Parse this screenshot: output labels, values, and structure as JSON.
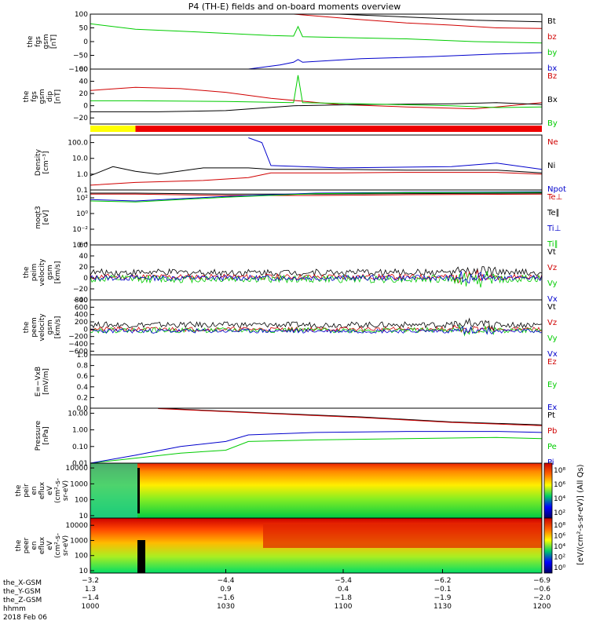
{
  "title": "P4 (TH-E) fields and on-board moments overview",
  "colors": {
    "black": "#000000",
    "red": "#d00000",
    "green": "#00cc00",
    "blue": "#0000cc",
    "yellow": "#ffff00",
    "bar_red": "#ee0000"
  },
  "chart_data": [
    {
      "type": "line",
      "title_lines": [
        "the",
        "fgs",
        "gsm",
        "[nT]"
      ],
      "ylim": [
        -100,
        100
      ],
      "yticks": [
        "100",
        "50",
        "0",
        "−50",
        "−100"
      ],
      "ytick_values": [
        100,
        50,
        0,
        -50,
        -100
      ],
      "series": [
        {
          "name": "Bt",
          "color": "#000000",
          "x": [
            0,
            0.35,
            0.55,
            0.75,
            0.85,
            1.0
          ],
          "y": [
            null,
            null,
            100,
            86,
            78,
            72
          ]
        },
        {
          "name": "bz",
          "color": "#d00000",
          "x": [
            0.45,
            0.6,
            0.7,
            0.8,
            0.9,
            1.0
          ],
          "y": [
            100,
            80,
            68,
            60,
            50,
            48
          ]
        },
        {
          "name": "by",
          "color": "#00cc00",
          "x": [
            0,
            0.1,
            0.2,
            0.3,
            0.4,
            0.45,
            0.46,
            0.47,
            0.55,
            0.7,
            0.85,
            1.0
          ],
          "y": [
            65,
            45,
            38,
            30,
            22,
            20,
            55,
            18,
            15,
            10,
            0,
            -5
          ]
        },
        {
          "name": "bx",
          "color": "#0000cc",
          "x": [
            0.35,
            0.42,
            0.45,
            0.46,
            0.47,
            0.6,
            0.75,
            0.9,
            1.0
          ],
          "y": [
            -100,
            -85,
            -75,
            -65,
            -75,
            -62,
            -55,
            -45,
            -40
          ]
        }
      ]
    },
    {
      "type": "line",
      "title_lines": [
        "the",
        "fgs",
        "gsm",
        "dip",
        "[nT]"
      ],
      "ylim": [
        -30,
        60
      ],
      "yticks": [
        "60",
        "40",
        "20",
        "0",
        "−20"
      ],
      "ytick_values": [
        60,
        40,
        20,
        0,
        -20
      ],
      "series": [
        {
          "name": "Bz",
          "color": "#d00000",
          "x": [
            0,
            0.1,
            0.2,
            0.3,
            0.4,
            0.46,
            0.55,
            0.7,
            0.85,
            0.9,
            1.0
          ],
          "y": [
            25,
            30,
            28,
            22,
            12,
            8,
            2,
            -2,
            -5,
            -2,
            5
          ]
        },
        {
          "name": "Bx",
          "color": "#000000",
          "x": [
            0,
            0.15,
            0.3,
            0.45,
            0.6,
            0.8,
            0.9,
            1.0
          ],
          "y": [
            -10,
            -10,
            -8,
            0,
            2,
            3,
            5,
            2
          ]
        },
        {
          "name": "By",
          "color": "#00cc00",
          "x": [
            0,
            0.1,
            0.3,
            0.45,
            0.46,
            0.47,
            0.6,
            0.8,
            0.9,
            1.0
          ],
          "y": [
            8,
            8,
            7,
            5,
            50,
            5,
            3,
            0,
            -3,
            -2
          ]
        }
      ]
    },
    {
      "type": "mode_bar",
      "segments": [
        {
          "from": 0.0,
          "to": 0.1,
          "color": "#ffff00"
        },
        {
          "from": 0.1,
          "to": 1.0,
          "color": "#ee0000"
        }
      ]
    },
    {
      "type": "line",
      "log": true,
      "title_lines": [
        "Density",
        "[cm⁻³]"
      ],
      "ylim": [
        0.1,
        300
      ],
      "yticks": [
        "100.0",
        "10.0",
        "1.0",
        "0.1"
      ],
      "ytick_values": [
        100,
        10,
        1,
        0.1
      ],
      "series": [
        {
          "name": "Ne",
          "color": "#d00000",
          "x": [
            0,
            0.1,
            0.25,
            0.35,
            0.4,
            0.55,
            0.7,
            0.9,
            1.0
          ],
          "y": [
            0.2,
            0.3,
            0.4,
            0.6,
            1.2,
            1.2,
            1.3,
            1.3,
            1.0
          ]
        },
        {
          "name": "Ni",
          "color": "#000000",
          "x": [
            0,
            0.05,
            0.1,
            0.15,
            0.25,
            0.35,
            0.4,
            0.55,
            0.7,
            0.9,
            1.0
          ],
          "y": [
            0.8,
            3.0,
            1.5,
            1.0,
            2.5,
            2.5,
            2.0,
            2.0,
            1.8,
            1.8,
            1.2
          ]
        },
        {
          "name": "Npot",
          "color": "#0000cc",
          "x": [
            0.35,
            0.38,
            0.4,
            0.55,
            0.8,
            0.9,
            1.0
          ],
          "y": [
            200,
            100,
            3.5,
            2.5,
            3.0,
            5.0,
            2.0
          ]
        }
      ]
    },
    {
      "type": "line",
      "log": true,
      "title_lines": [
        "moqt3",
        "[eV]"
      ],
      "ylim": [
        0.0001,
        1000
      ],
      "yticks": [
        "10²",
        "10⁰",
        "10⁻²",
        "10⁻⁴"
      ],
      "ytick_values": [
        100,
        1,
        0.01,
        0.0001
      ],
      "series": [
        {
          "name": "Te⊥",
          "color": "#d00000",
          "x": [
            0,
            0.1,
            0.3,
            0.5,
            0.7,
            1.0
          ],
          "y": [
            300,
            300,
            200,
            200,
            250,
            300
          ]
        },
        {
          "name": "Te∥",
          "color": "#000000",
          "x": [
            0,
            0.1,
            0.3,
            0.5,
            0.7,
            1.0
          ],
          "y": [
            400,
            400,
            300,
            300,
            350,
            400
          ]
        },
        {
          "name": "Ti⊥",
          "color": "#0000cc",
          "x": [
            0,
            0.1,
            0.3,
            0.5,
            0.7,
            1.0
          ],
          "y": [
            60,
            40,
            150,
            400,
            500,
            600
          ]
        },
        {
          "name": "Ti∥",
          "color": "#00cc00",
          "x": [
            0,
            0.1,
            0.3,
            0.5,
            0.7,
            1.0
          ],
          "y": [
            40,
            30,
            120,
            350,
            450,
            500
          ]
        }
      ]
    },
    {
      "type": "line",
      "title_lines": [
        "the",
        "peim",
        "velocity",
        "gsm",
        "[km/s]"
      ],
      "ylim": [
        -40,
        60
      ],
      "yticks": [
        "60",
        "40",
        "20",
        "0",
        "−20",
        "−40"
      ],
      "ytick_values": [
        60,
        40,
        20,
        0,
        -20,
        -40
      ],
      "noise_seed": 1,
      "series": [
        {
          "name": "Vt",
          "color": "#000000",
          "level": 10,
          "amp": 6
        },
        {
          "name": "Vz",
          "color": "#d00000",
          "level": 2,
          "amp": 5
        },
        {
          "name": "Vy",
          "color": "#00cc00",
          "level": -2,
          "amp": 7
        },
        {
          "name": "Vx",
          "color": "#0000cc",
          "level": 0,
          "amp": 5
        }
      ]
    },
    {
      "type": "line",
      "title_lines": [
        "the",
        "peem",
        "velocity",
        "gsm",
        "[km/s]"
      ],
      "ylim": [
        -700,
        800
      ],
      "yticks": [
        "800",
        "600",
        "400",
        "200",
        "0",
        "−200",
        "−400",
        "−600"
      ],
      "ytick_values": [
        800,
        600,
        400,
        200,
        0,
        -200,
        -400,
        -600
      ],
      "noise_seed": 2,
      "series": [
        {
          "name": "Vt",
          "color": "#000000",
          "level": 120,
          "amp": 80
        },
        {
          "name": "Vz",
          "color": "#d00000",
          "level": 0,
          "amp": 60
        },
        {
          "name": "Vy",
          "color": "#00cc00",
          "level": -30,
          "amp": 70
        },
        {
          "name": "Vx",
          "color": "#0000cc",
          "level": -50,
          "amp": 60
        }
      ]
    },
    {
      "type": "line",
      "title_lines": [
        "E=−VxB",
        "[mV/m]"
      ],
      "ylim": [
        0,
        1
      ],
      "yticks": [
        "1.0",
        "0.8",
        "0.6",
        "0.4",
        "0.2",
        "0.0"
      ],
      "ytick_values": [
        1,
        0.8,
        0.6,
        0.4,
        0.2,
        0
      ],
      "series": [
        {
          "name": "Ez",
          "color": "#d00000",
          "x": [],
          "y": []
        },
        {
          "name": "Ey",
          "color": "#00cc00",
          "x": [],
          "y": []
        },
        {
          "name": "Ex",
          "color": "#0000cc",
          "x": [],
          "y": []
        }
      ]
    },
    {
      "type": "line",
      "log": true,
      "title_lines": [
        "Pressure",
        "[nPa]"
      ],
      "ylim": [
        0.01,
        20
      ],
      "yticks": [
        "10.00",
        "1.00",
        "0.10",
        "0.01"
      ],
      "ytick_values": [
        10,
        1,
        0.1,
        0.01
      ],
      "series": [
        {
          "name": "Pt",
          "color": "#000000",
          "x": [
            0.15,
            0.4,
            0.6,
            0.8,
            1.0
          ],
          "y": [
            20,
            10,
            6,
            3,
            2
          ]
        },
        {
          "name": "Pb",
          "color": "#d00000",
          "x": [
            0.15,
            0.4,
            0.6,
            0.8,
            1.0
          ],
          "y": [
            19,
            9.5,
            5.5,
            2.8,
            1.8
          ]
        },
        {
          "name": "Pe",
          "color": "#00cc00",
          "x": [
            0,
            0.1,
            0.2,
            0.3,
            0.35,
            0.5,
            0.7,
            0.9,
            1.0
          ],
          "y": [
            0.01,
            0.02,
            0.04,
            0.06,
            0.2,
            0.25,
            0.3,
            0.35,
            0.3
          ]
        },
        {
          "name": "Pi",
          "color": "#0000cc",
          "x": [
            0,
            0.1,
            0.2,
            0.3,
            0.35,
            0.5,
            0.7,
            0.9,
            1.0
          ],
          "y": [
            0.01,
            0.03,
            0.1,
            0.2,
            0.5,
            0.7,
            0.8,
            0.8,
            0.7
          ]
        }
      ]
    },
    {
      "type": "heatmap",
      "title_lines": [
        "the",
        "peir",
        "en",
        "eflux",
        "eV",
        "(cm²-s-",
        "sr-eV)"
      ],
      "log": true,
      "ylim": [
        7,
        20000
      ],
      "yticks": [
        "10000",
        "1000",
        "100",
        "10"
      ],
      "ytick_values": [
        10000,
        1000,
        100,
        10
      ],
      "colorbar_label": "[eV/(cm²-s-sr-eV)] (All Qs)",
      "colorbar_ticks": [
        "10⁸",
        "10⁶",
        "10⁴",
        "10²"
      ]
    },
    {
      "type": "heatmap",
      "title_lines": [
        "the",
        "peer",
        "en",
        "eflux",
        "eV",
        "(cm²-s-",
        "sr-eV)"
      ],
      "log": true,
      "ylim": [
        7,
        30000
      ],
      "yticks": [
        "10000",
        "1000",
        "100",
        "10"
      ],
      "ytick_values": [
        10000,
        1000,
        100,
        10
      ],
      "colorbar_ticks": [
        "10⁸",
        "10⁶",
        "10⁴",
        "10²",
        "10⁰"
      ]
    }
  ],
  "xaxis": {
    "rows": [
      {
        "label": "the_X-GSM",
        "values": [
          "−3.2",
          "−4.4",
          "−5.4",
          "−6.2",
          "−6.9"
        ]
      },
      {
        "label": "the_Y-GSM",
        "values": [
          "1.3",
          "0.9",
          "0.4",
          "−0.1",
          "−0.6"
        ]
      },
      {
        "label": "the_Z-GSM",
        "values": [
          "−1.4",
          "−1.6",
          "−1.8",
          "−1.9",
          "−2.0"
        ]
      },
      {
        "label": "hhmm",
        "values": [
          "1000",
          "1030",
          "1100",
          "1130",
          "1200"
        ]
      }
    ],
    "date": "2018 Feb 06"
  }
}
